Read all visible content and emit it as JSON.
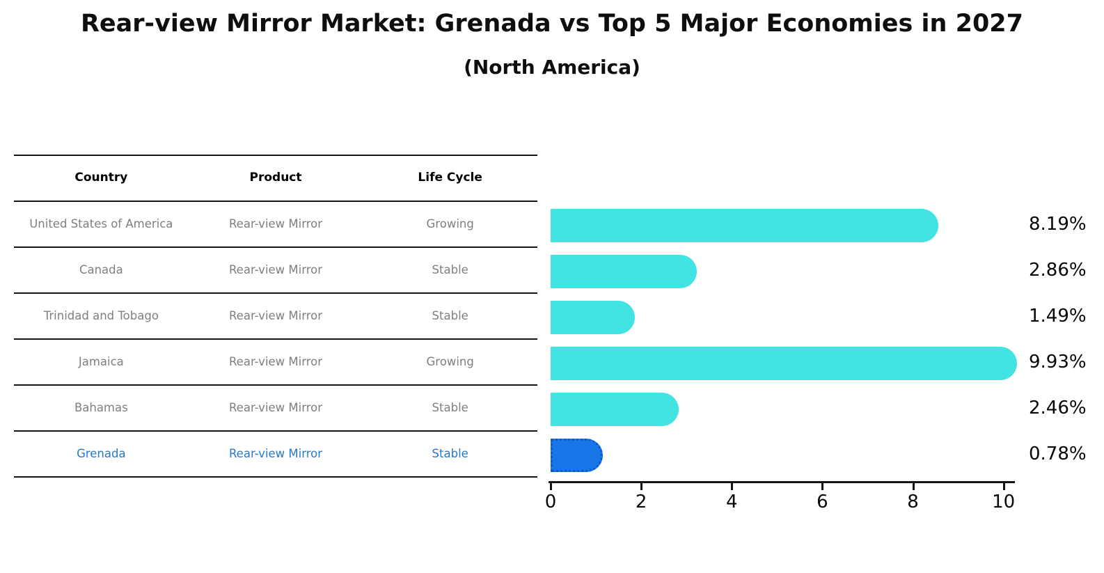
{
  "title": "Rear-view Mirror Market: Grenada vs Top 5 Major Economies in 2027",
  "subtitle": "(North America)",
  "table": {
    "columns": [
      "Country",
      "Product",
      "Life Cycle"
    ],
    "rows": [
      {
        "country": "United States of America",
        "product": "Rear-view Mirror",
        "life_cycle": "Growing",
        "highlight": false
      },
      {
        "country": "Canada",
        "product": "Rear-view Mirror",
        "life_cycle": "Stable",
        "highlight": false
      },
      {
        "country": "Trinidad and Tobago",
        "product": "Rear-view Mirror",
        "life_cycle": "Stable",
        "highlight": false
      },
      {
        "country": "Jamaica",
        "product": "Rear-view Mirror",
        "life_cycle": "Growing",
        "highlight": false
      },
      {
        "country": "Bahamas",
        "product": "Rear-view Mirror",
        "life_cycle": "Stable",
        "highlight": false
      },
      {
        "country": "Grenada",
        "product": "Rear-view Mirror",
        "life_cycle": "Stable",
        "highlight": true
      }
    ]
  },
  "chart_data": {
    "type": "bar",
    "orientation": "horizontal",
    "title": "Rear-view Mirror Market: Grenada vs Top 5 Major Economies in 2027",
    "subtitle": "(North America)",
    "categories": [
      "United States of America",
      "Canada",
      "Trinidad and Tobago",
      "Jamaica",
      "Bahamas",
      "Grenada"
    ],
    "values": [
      8.19,
      2.86,
      1.49,
      9.93,
      2.46,
      0.78
    ],
    "labels": [
      "8.19%",
      "2.86%",
      "1.49%",
      "9.93%",
      "2.46%",
      "0.78%"
    ],
    "xlim": [
      0,
      10.5
    ],
    "xticks": [
      "0",
      "2",
      "4",
      "6",
      "8",
      "10"
    ],
    "xtick_values": [
      0,
      2,
      4,
      6,
      8,
      10
    ],
    "grid": false,
    "legend": false,
    "highlight_index": 5,
    "bar_color": "#42E3E3",
    "highlight_fill": "#1976E8",
    "highlight_border": "#0d59c8",
    "highlight_text_color": "#2878c8"
  }
}
